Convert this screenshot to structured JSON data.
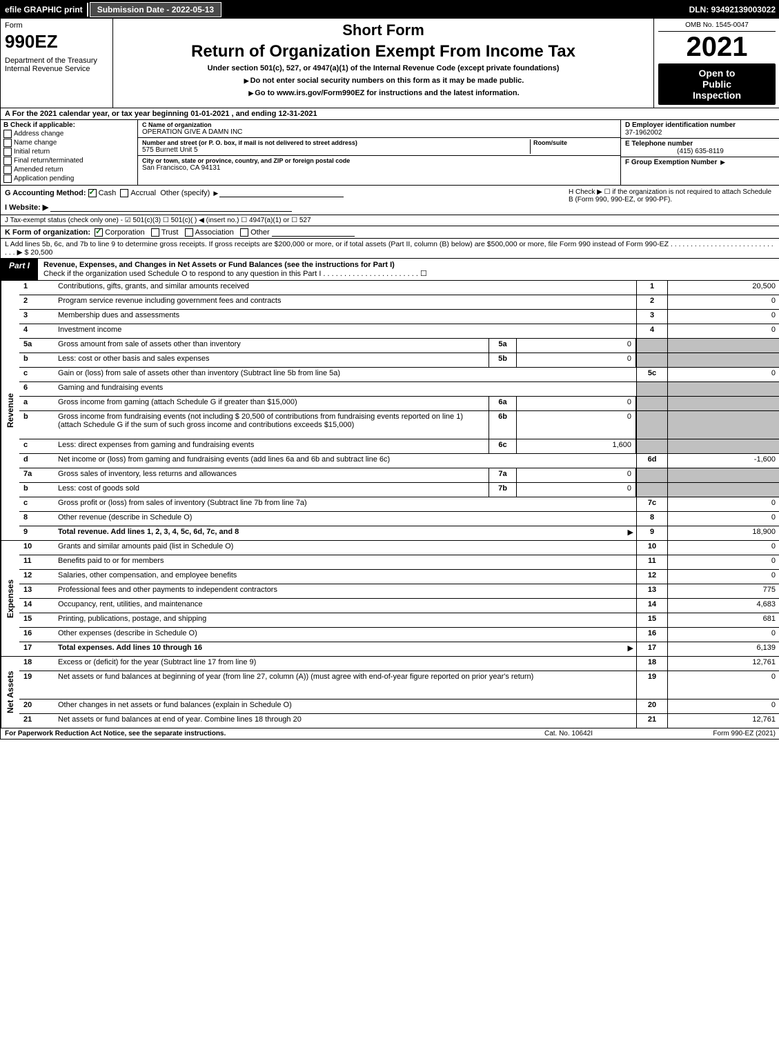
{
  "top": {
    "efile": "efile GRAPHIC print",
    "subdate": "Submission Date - 2022-05-13",
    "dln": "DLN: 93492139003022"
  },
  "header": {
    "form_label": "Form",
    "form_number": "990EZ",
    "dept1": "Department of the Treasury",
    "dept2": "Internal Revenue Service",
    "short_form": "Short Form",
    "return_title": "Return of Organization Exempt From Income Tax",
    "under": "Under section 501(c), 527, or 4947(a)(1) of the Internal Revenue Code (except private foundations)",
    "do_not": "Do not enter social security numbers on this form as it may be made public.",
    "goto": "Go to www.irs.gov/Form990EZ for instructions and the latest information.",
    "omb": "OMB No. 1545-0047",
    "year": "2021",
    "open1": "Open to",
    "open2": "Public",
    "open3": "Inspection"
  },
  "lineA": "A  For the 2021 calendar year, or tax year beginning 01-01-2021 , and ending 12-31-2021",
  "sectionB": {
    "title": "B  Check if applicable:",
    "opts": [
      "Address change",
      "Name change",
      "Initial return",
      "Final return/terminated",
      "Amended return",
      "Application pending"
    ]
  },
  "sectionC": {
    "name_lbl": "C Name of organization",
    "name": "OPERATION GIVE A DAMN INC",
    "addr_lbl": "Number and street (or P. O. box, if mail is not delivered to street address)",
    "room_lbl": "Room/suite",
    "addr": "575 Burnett Unit 5",
    "city_lbl": "City or town, state or province, country, and ZIP or foreign postal code",
    "city": "San Francisco, CA  94131"
  },
  "sectionD": {
    "ein_lbl": "D Employer identification number",
    "ein": "37-1962002",
    "tel_lbl": "E Telephone number",
    "tel": "(415) 635-8119",
    "group_lbl": "F Group Exemption Number"
  },
  "lineG": {
    "label": "G Accounting Method:",
    "cash": "Cash",
    "accrual": "Accrual",
    "other": "Other (specify)"
  },
  "lineH": "H  Check ▶  ☐  if the organization is not required to attach Schedule B (Form 990, 990-EZ, or 990-PF).",
  "lineI": "I Website: ▶",
  "lineJ": "J Tax-exempt status (check only one) -  ☑ 501(c)(3)  ☐ 501(c)(  ) ◀ (insert no.)  ☐ 4947(a)(1) or  ☐ 527",
  "lineK": {
    "label": "K Form of organization:",
    "corp": "Corporation",
    "trust": "Trust",
    "assoc": "Association",
    "other": "Other"
  },
  "lineL": {
    "text": "L Add lines 5b, 6c, and 7b to line 9 to determine gross receipts. If gross receipts are $200,000 or more, or if total assets (Part II, column (B) below) are $500,000 or more, file Form 990 instead of Form 990-EZ . . . . . . . . . . . . . . . . . . . . . . . . . . . . . ▶ $",
    "value": "20,500"
  },
  "partI": {
    "label": "Part I",
    "title": "Revenue, Expenses, and Changes in Net Assets or Fund Balances (see the instructions for Part I)",
    "check": "Check if the organization used Schedule O to respond to any question in this Part I . . . . . . . . . . . . . . . . . . . . . . .  ☐"
  },
  "revenue": {
    "side": "Revenue",
    "rows": [
      {
        "n": "1",
        "desc": "Contributions, gifts, grants, and similar amounts received",
        "ln": "1",
        "val": "20,500"
      },
      {
        "n": "2",
        "desc": "Program service revenue including government fees and contracts",
        "ln": "2",
        "val": "0"
      },
      {
        "n": "3",
        "desc": "Membership dues and assessments",
        "ln": "3",
        "val": "0"
      },
      {
        "n": "4",
        "desc": "Investment income",
        "ln": "4",
        "val": "0"
      },
      {
        "n": "5a",
        "desc": "Gross amount from sale of assets other than inventory",
        "sn": "5a",
        "sv": "0",
        "gray": true
      },
      {
        "n": "b",
        "desc": "Less: cost or other basis and sales expenses",
        "sn": "5b",
        "sv": "0",
        "gray": true
      },
      {
        "n": "c",
        "desc": "Gain or (loss) from sale of assets other than inventory (Subtract line 5b from line 5a)",
        "ln": "5c",
        "val": "0"
      },
      {
        "n": "6",
        "desc": "Gaming and fundraising events",
        "gray": true
      },
      {
        "n": "a",
        "desc": "Gross income from gaming (attach Schedule G if greater than $15,000)",
        "sn": "6a",
        "sv": "0",
        "gray": true
      },
      {
        "n": "b",
        "desc": "Gross income from fundraising events (not including $  20,500   of contributions from fundraising events reported on line 1) (attach Schedule G if the sum of such gross income and contributions exceeds $15,000)",
        "sn": "6b",
        "sv": "0",
        "gray": true,
        "tall": true
      },
      {
        "n": "c",
        "desc": "Less: direct expenses from gaming and fundraising events",
        "sn": "6c",
        "sv": "1,600",
        "gray": true
      },
      {
        "n": "d",
        "desc": "Net income or (loss) from gaming and fundraising events (add lines 6a and 6b and subtract line 6c)",
        "ln": "6d",
        "val": "-1,600"
      },
      {
        "n": "7a",
        "desc": "Gross sales of inventory, less returns and allowances",
        "sn": "7a",
        "sv": "0",
        "gray": true
      },
      {
        "n": "b",
        "desc": "Less: cost of goods sold",
        "sn": "7b",
        "sv": "0",
        "gray": true
      },
      {
        "n": "c",
        "desc": "Gross profit or (loss) from sales of inventory (Subtract line 7b from line 7a)",
        "ln": "7c",
        "val": "0"
      },
      {
        "n": "8",
        "desc": "Other revenue (describe in Schedule O)",
        "ln": "8",
        "val": "0"
      },
      {
        "n": "9",
        "desc": "Total revenue. Add lines 1, 2, 3, 4, 5c, 6d, 7c, and 8",
        "ln": "9",
        "val": "18,900",
        "bold": true,
        "arrow": true
      }
    ]
  },
  "expenses": {
    "side": "Expenses",
    "rows": [
      {
        "n": "10",
        "desc": "Grants and similar amounts paid (list in Schedule O)",
        "ln": "10",
        "val": "0"
      },
      {
        "n": "11",
        "desc": "Benefits paid to or for members",
        "ln": "11",
        "val": "0"
      },
      {
        "n": "12",
        "desc": "Salaries, other compensation, and employee benefits",
        "ln": "12",
        "val": "0"
      },
      {
        "n": "13",
        "desc": "Professional fees and other payments to independent contractors",
        "ln": "13",
        "val": "775"
      },
      {
        "n": "14",
        "desc": "Occupancy, rent, utilities, and maintenance",
        "ln": "14",
        "val": "4,683"
      },
      {
        "n": "15",
        "desc": "Printing, publications, postage, and shipping",
        "ln": "15",
        "val": "681"
      },
      {
        "n": "16",
        "desc": "Other expenses (describe in Schedule O)",
        "ln": "16",
        "val": "0"
      },
      {
        "n": "17",
        "desc": "Total expenses. Add lines 10 through 16",
        "ln": "17",
        "val": "6,139",
        "bold": true,
        "arrow": true
      }
    ]
  },
  "netassets": {
    "side": "Net Assets",
    "rows": [
      {
        "n": "18",
        "desc": "Excess or (deficit) for the year (Subtract line 17 from line 9)",
        "ln": "18",
        "val": "12,761"
      },
      {
        "n": "19",
        "desc": "Net assets or fund balances at beginning of year (from line 27, column (A)) (must agree with end-of-year figure reported on prior year's return)",
        "ln": "19",
        "val": "0",
        "tall": true
      },
      {
        "n": "20",
        "desc": "Other changes in net assets or fund balances (explain in Schedule O)",
        "ln": "20",
        "val": "0"
      },
      {
        "n": "21",
        "desc": "Net assets or fund balances at end of year. Combine lines 18 through 20",
        "ln": "21",
        "val": "12,761"
      }
    ]
  },
  "footer": {
    "left": "For Paperwork Reduction Act Notice, see the separate instructions.",
    "center": "Cat. No. 10642I",
    "right": "Form 990-EZ (2021)"
  }
}
